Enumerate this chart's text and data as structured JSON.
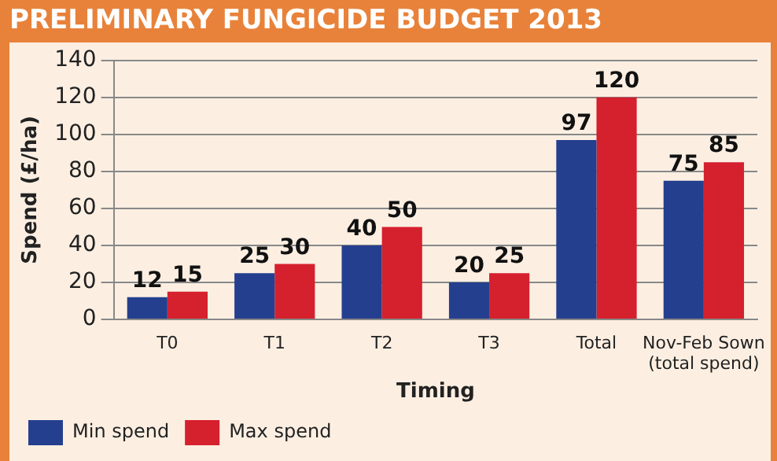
{
  "chart_data": {
    "type": "bar",
    "title": "PRELIMINARY FUNGICIDE BUDGET 2013",
    "xlabel": "Timing",
    "ylabel": "Spend (£/ha)",
    "categories": [
      "T0",
      "T1",
      "T2",
      "T3",
      "Total",
      "Nov-Feb Sown (total spend)"
    ],
    "series": [
      {
        "name": "Min spend",
        "color": "#253f8f",
        "values": [
          12,
          25,
          40,
          20,
          97,
          75
        ]
      },
      {
        "name": "Max spend",
        "color": "#d5202e",
        "values": [
          15,
          30,
          50,
          25,
          120,
          85
        ]
      }
    ],
    "ylim": [
      0,
      140
    ],
    "yticks": [
      0,
      20,
      40,
      60,
      80,
      100,
      120,
      140
    ],
    "grid": "y",
    "legend": "bottom left",
    "data_labels": true
  }
}
